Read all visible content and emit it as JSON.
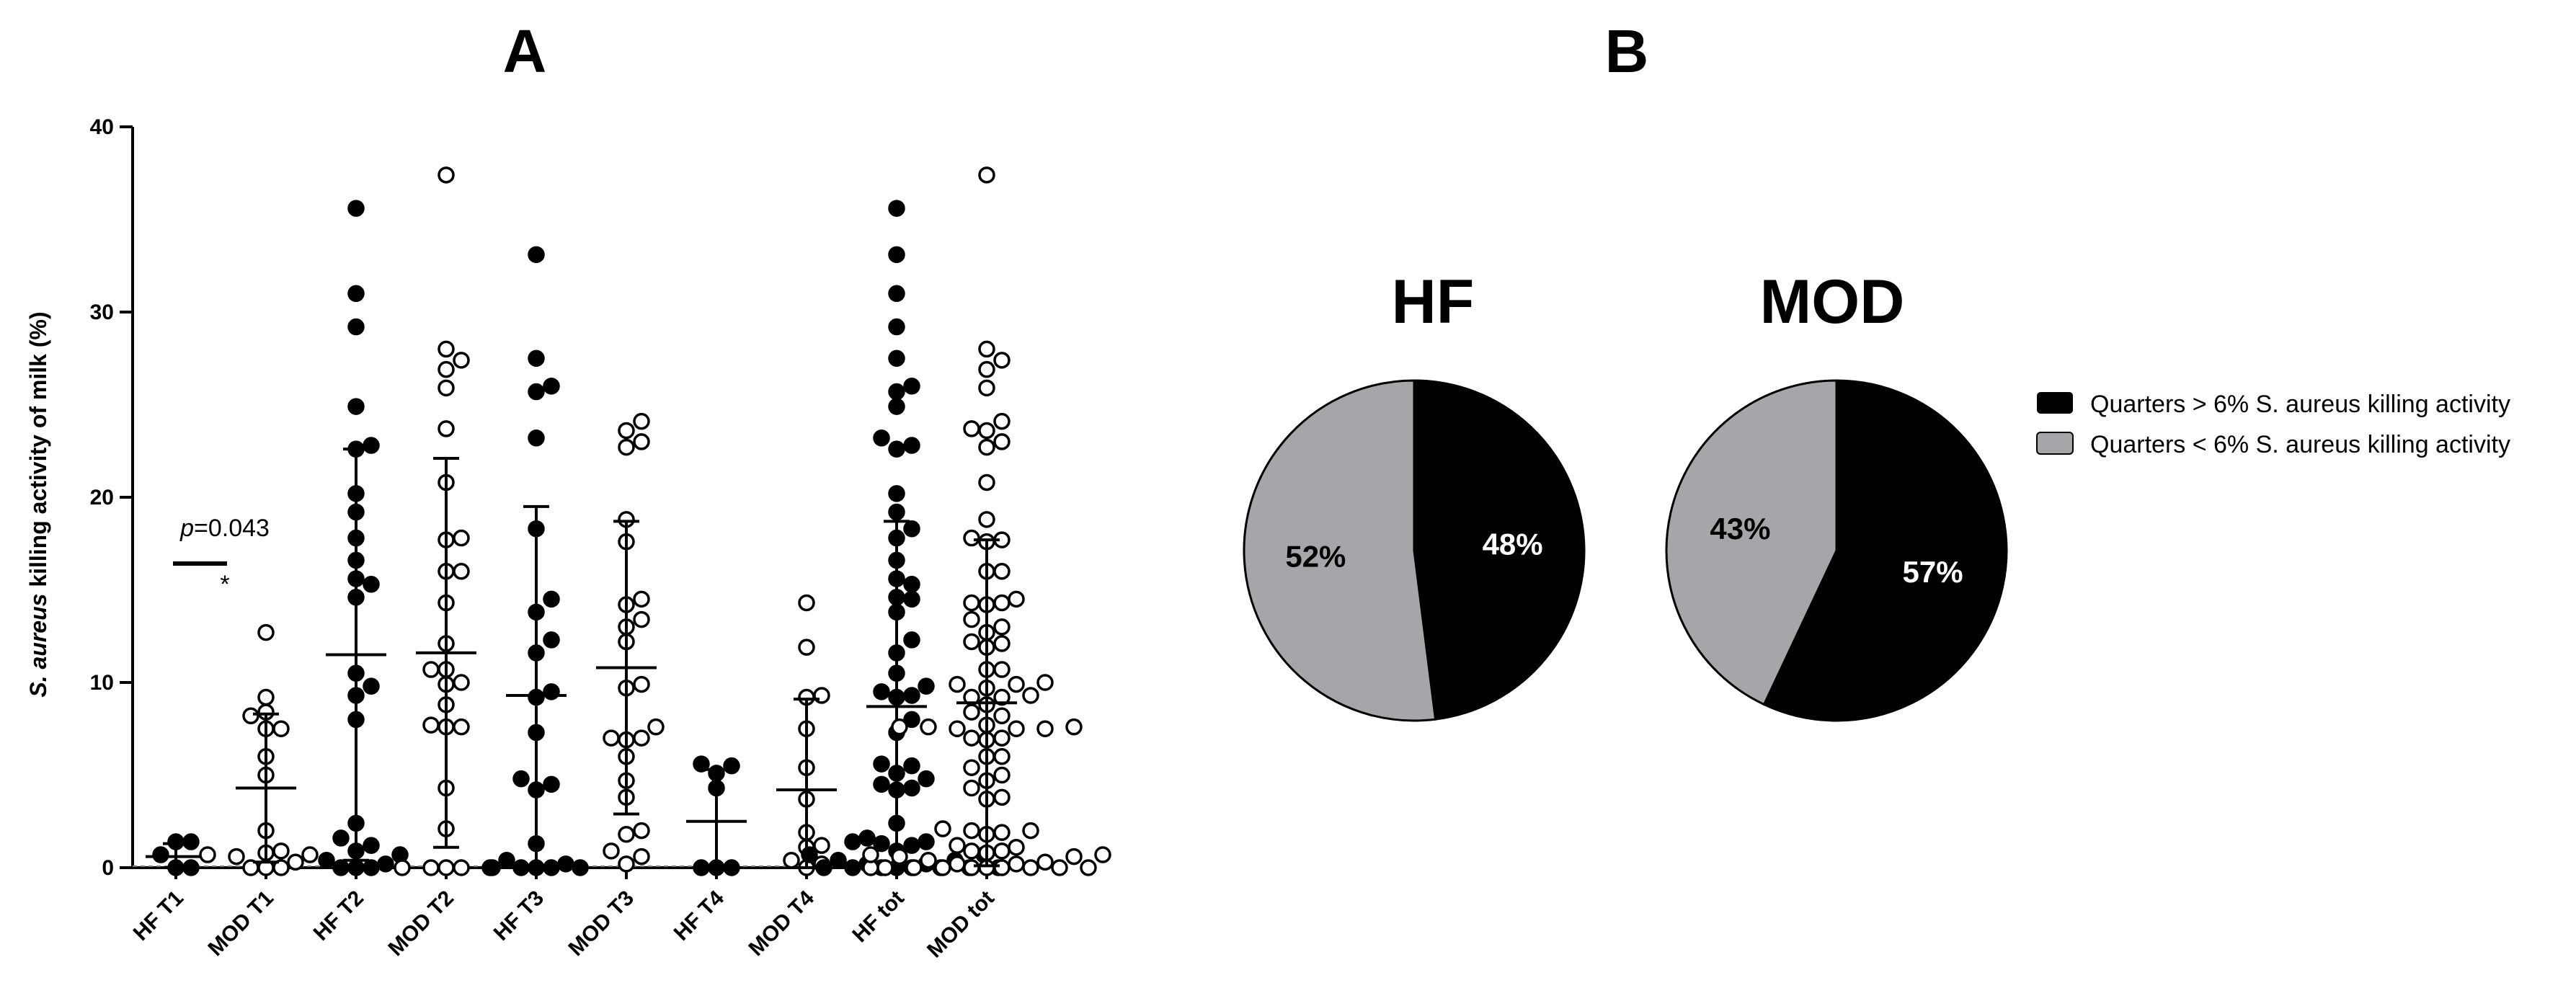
{
  "chart_data": [
    {
      "type": "scatter",
      "panel": "A",
      "ylabel_italic": "S. aureus",
      "ylabel_rest": " killing activity of milk (%)",
      "ylim": [
        0,
        40
      ],
      "yticks": [
        0,
        10,
        20,
        30,
        40
      ],
      "grid": false,
      "annotation": {
        "p_italic": "p",
        "p_rest": "=0.043",
        "star": "*",
        "between": [
          "HF T1",
          "MOD T1"
        ]
      },
      "groups": [
        {
          "label": "HF T1",
          "filled": true,
          "mean": 0.6,
          "sd": 0.7,
          "values": [
            0,
            0,
            1.4,
            1.4,
            0.7
          ]
        },
        {
          "label": "MOD T1",
          "filled": false,
          "mean": 4.3,
          "sd": 4.0,
          "values": [
            12.7,
            9.2,
            8.4,
            8.2,
            7.5,
            7.5,
            6.0,
            5.0,
            2.0,
            0.9,
            0.8,
            0.7,
            0.7,
            0.6,
            0.3,
            0,
            0,
            0
          ]
        },
        {
          "label": "HF T2",
          "filled": true,
          "mean": 11.5,
          "sd": 11.1,
          "values": [
            35.6,
            31.0,
            29.2,
            24.9,
            22.8,
            22.6,
            20.2,
            19.2,
            17.8,
            16.6,
            15.6,
            15.3,
            14.6,
            10.5,
            9.8,
            9.3,
            8.0,
            2.4,
            1.6,
            1.2,
            0.9,
            0.7,
            0.4,
            0.2,
            0,
            0,
            0
          ]
        },
        {
          "label": "MOD T2",
          "filled": false,
          "mean": 11.6,
          "sd": 10.5,
          "values": [
            37.4,
            28.0,
            27.4,
            26.9,
            25.9,
            23.7,
            20.8,
            17.8,
            17.7,
            16.0,
            16.0,
            14.3,
            12.1,
            10.7,
            10.7,
            10.0,
            9.9,
            8.8,
            7.7,
            7.6,
            7.6,
            4.3,
            2.1,
            0,
            0,
            0,
            0,
            0
          ]
        },
        {
          "label": "HF T3",
          "filled": true,
          "mean": 9.3,
          "sd": 10.2,
          "values": [
            33.1,
            27.5,
            26.0,
            25.7,
            23.2,
            18.3,
            14.5,
            13.8,
            12.3,
            11.6,
            9.5,
            9.2,
            7.3,
            4.8,
            4.5,
            4.2,
            1.3,
            0.4,
            0.2,
            0,
            0,
            0,
            0,
            0
          ]
        },
        {
          "label": "MOD T3",
          "filled": false,
          "mean": 10.8,
          "sd": 7.9,
          "values": [
            24.1,
            23.6,
            23.0,
            22.7,
            18.8,
            17.6,
            14.5,
            14.2,
            13.4,
            13.0,
            12.2,
            9.9,
            9.7,
            7.6,
            7.0,
            7.0,
            6.9,
            6.0,
            4.7,
            3.8,
            2.0,
            1.8,
            0.9,
            0.6,
            0.2
          ]
        },
        {
          "label": "HF T4",
          "filled": true,
          "mean": 2.5,
          "sd": 2.8,
          "values": [
            5.6,
            5.5,
            5.1,
            4.3,
            0,
            0,
            0
          ]
        },
        {
          "label": "MOD T4",
          "filled": false,
          "mean": 4.2,
          "sd": 4.9,
          "values": [
            14.3,
            11.9,
            9.3,
            9.2,
            7.5,
            5.4,
            3.7,
            1.9,
            1.2,
            1.1,
            0.4,
            0.2,
            0
          ]
        },
        {
          "label": "HF tot",
          "filled": true,
          "mean": 8.7,
          "sd": 10.0,
          "values": [
            35.6,
            33.1,
            31.0,
            29.2,
            27.5,
            26.0,
            25.7,
            24.9,
            23.2,
            22.8,
            22.6,
            20.2,
            19.2,
            18.3,
            17.8,
            16.6,
            15.6,
            15.3,
            14.6,
            14.5,
            13.8,
            12.3,
            11.6,
            10.5,
            9.8,
            9.5,
            9.3,
            9.2,
            8.0,
            7.3,
            5.6,
            5.5,
            5.1,
            4.8,
            4.5,
            4.3,
            4.2,
            2.4,
            1.6,
            1.4,
            1.4,
            1.3,
            1.2,
            0.9,
            0.7,
            0.7,
            0.4,
            0.4,
            0.2,
            0.2,
            0,
            0,
            0,
            0,
            0,
            0,
            0,
            0
          ]
        },
        {
          "label": "MOD tot",
          "filled": false,
          "mean": 8.9,
          "sd": 8.8,
          "values": [
            37.4,
            28.0,
            27.4,
            26.9,
            25.9,
            24.1,
            23.7,
            23.6,
            23.0,
            22.7,
            20.8,
            18.8,
            17.8,
            17.7,
            17.6,
            16.0,
            16.0,
            14.5,
            14.3,
            14.3,
            14.2,
            13.4,
            13.0,
            12.7,
            12.2,
            12.1,
            11.9,
            10.7,
            10.7,
            10.0,
            9.9,
            9.9,
            9.7,
            9.3,
            9.2,
            9.2,
            8.8,
            8.4,
            8.2,
            7.7,
            7.6,
            7.6,
            7.6,
            7.5,
            7.5,
            7.5,
            7.0,
            7.0,
            6.9,
            6.0,
            6.0,
            5.4,
            5.0,
            4.7,
            4.3,
            3.8,
            3.7,
            2.1,
            2.0,
            2.0,
            1.9,
            1.8,
            1.2,
            1.1,
            0.9,
            0.9,
            0.8,
            0.7,
            0.7,
            0.6,
            0.6,
            0.4,
            0.3,
            0.2,
            0.2,
            0,
            0,
            0,
            0,
            0,
            0,
            0,
            0,
            0,
            0
          ]
        }
      ]
    },
    {
      "type": "pie",
      "panel": "B",
      "pies": [
        {
          "title": "HF",
          "slices": [
            {
              "name": "Quarters > 6% S. aureus killing activity",
              "value": 48,
              "label": "48%",
              "color": "#000000"
            },
            {
              "name": "Quarters < 6% S. aureus killing activity",
              "value": 52,
              "label": "52%",
              "color": "#a6a6aa"
            }
          ]
        },
        {
          "title": "MOD",
          "slices": [
            {
              "name": "Quarters > 6% S. aureus killing activity",
              "value": 57,
              "label": "57%",
              "color": "#000000"
            },
            {
              "name": "Quarters < 6% S. aureus killing activity",
              "value": 43,
              "label": "43%",
              "color": "#a6a6aa"
            }
          ]
        }
      ],
      "legend": [
        {
          "label": "Quarters > 6% S. aureus killing activity",
          "color": "#000000"
        },
        {
          "label": "Quarters < 6% S. aureus killing activity",
          "color": "#a6a6aa"
        }
      ],
      "legend_position": "right"
    }
  ]
}
